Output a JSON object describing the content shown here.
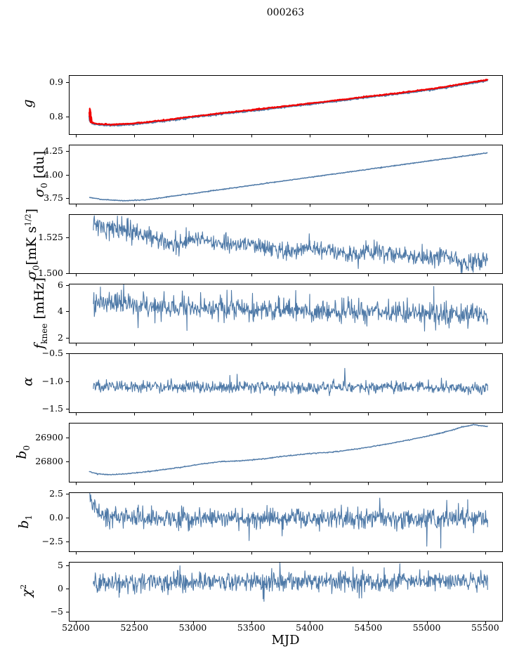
{
  "title": "000263",
  "xlabel": "MJD",
  "colors": {
    "data_blue": "#4e79a7",
    "fit_red": "#f20000",
    "spine": "#000000",
    "text": "#000000"
  },
  "chart_data": {
    "type": "line",
    "title": "000263",
    "xlabel": "MJD",
    "grid": false,
    "legend": "none",
    "xlim": [
      51940,
      55645
    ],
    "x_range": [
      52115,
      55520
    ],
    "xticks": [
      {
        "v": 52000,
        "label": "52000"
      },
      {
        "v": 52500,
        "label": "52500"
      },
      {
        "v": 53000,
        "label": "53000"
      },
      {
        "v": 53500,
        "label": "53500"
      },
      {
        "v": 54000,
        "label": "54000"
      },
      {
        "v": 54500,
        "label": "54500"
      },
      {
        "v": 55000,
        "label": "55000"
      },
      {
        "v": 55500,
        "label": "55500"
      }
    ],
    "subplots": [
      {
        "name": "g",
        "ylabel_segments": [
          {
            "t": "g",
            "s": "i"
          }
        ],
        "ylim": [
          0.748,
          0.92
        ],
        "yticks": [
          {
            "v": 0.8,
            "label": "0.8"
          },
          {
            "v": 0.9,
            "label": "0.9"
          }
        ],
        "series": [
          {
            "name": "gain-data",
            "color": "data_blue",
            "width": 2.2,
            "noise_std": 0.0012,
            "keypoints": [
              [
                52115,
                0.8
              ],
              [
                52118,
                0.7875
              ],
              [
                52122,
                0.7915
              ],
              [
                52126,
                0.7825
              ],
              [
                52132,
                0.786
              ],
              [
                52140,
                0.7795
              ],
              [
                52155,
                0.7775
              ],
              [
                52200,
                0.7755
              ],
              [
                52300,
                0.774
              ],
              [
                52420,
                0.7755
              ],
              [
                52560,
                0.7795
              ],
              [
                52750,
                0.7865
              ],
              [
                53000,
                0.7975
              ],
              [
                53250,
                0.8075
              ],
              [
                53500,
                0.8165
              ],
              [
                53750,
                0.826
              ],
              [
                54000,
                0.8355
              ],
              [
                54250,
                0.8455
              ],
              [
                54500,
                0.856
              ],
              [
                54750,
                0.8655
              ],
              [
                55000,
                0.8765
              ],
              [
                55150,
                0.8835
              ],
              [
                55300,
                0.8925
              ],
              [
                55420,
                0.899
              ],
              [
                55520,
                0.9045
              ]
            ]
          },
          {
            "name": "gain-fit",
            "color": "fit_red",
            "width": 2.2,
            "noise_std": 0.0007,
            "keypoints": [
              [
                52115,
                0.8115
              ],
              [
                52117,
                0.799
              ],
              [
                52119,
                0.8235
              ],
              [
                52121,
                0.7875
              ],
              [
                52123,
                0.8185
              ],
              [
                52125,
                0.7835
              ],
              [
                52127,
                0.8125
              ],
              [
                52129,
                0.7815
              ],
              [
                52132,
                0.7975
              ],
              [
                52136,
                0.7855
              ],
              [
                52142,
                0.7815
              ],
              [
                52155,
                0.7795
              ],
              [
                52200,
                0.7775
              ],
              [
                52300,
                0.776
              ],
              [
                52420,
                0.7775
              ],
              [
                52560,
                0.7815
              ],
              [
                52750,
                0.7885
              ],
              [
                53000,
                0.7995
              ],
              [
                53250,
                0.8095
              ],
              [
                53500,
                0.8185
              ],
              [
                53750,
                0.828
              ],
              [
                54000,
                0.8375
              ],
              [
                54250,
                0.8475
              ],
              [
                54500,
                0.858
              ],
              [
                54750,
                0.8675
              ],
              [
                55000,
                0.8785
              ],
              [
                55150,
                0.8855
              ],
              [
                55300,
                0.8945
              ],
              [
                55420,
                0.901
              ],
              [
                55520,
                0.9065
              ]
            ]
          }
        ]
      },
      {
        "name": "sigma0-du",
        "ylabel_segments": [
          {
            "t": "σ",
            "s": "i"
          },
          {
            "t": "0",
            "s": "sub"
          },
          {
            "t": " [du]",
            "s": "n"
          }
        ],
        "ylim": [
          3.69,
          4.32
        ],
        "yticks": [
          {
            "v": 3.75,
            "label": "3.75"
          },
          {
            "v": 4.0,
            "label": "4.00"
          },
          {
            "v": 4.25,
            "label": "4.25"
          }
        ],
        "series": [
          {
            "name": "sigma0-du-line",
            "color": "data_blue",
            "width": 1.5,
            "noise_std": 0.0022,
            "keypoints": [
              [
                52115,
                3.757
              ],
              [
                52230,
                3.734
              ],
              [
                52420,
                3.7215
              ],
              [
                52600,
                3.731
              ],
              [
                52900,
                3.7825
              ],
              [
                53200,
                3.834
              ],
              [
                53500,
                3.8855
              ],
              [
                53800,
                3.937
              ],
              [
                54100,
                3.9885
              ],
              [
                54400,
                4.04
              ],
              [
                54700,
                4.0915
              ],
              [
                55000,
                4.143
              ],
              [
                55300,
                4.1945
              ],
              [
                55520,
                4.232
              ]
            ]
          }
        ]
      },
      {
        "name": "sigma0-mk",
        "ylabel_segments": [
          {
            "t": "σ",
            "s": "i"
          },
          {
            "t": "0",
            "s": "sub"
          },
          {
            "t": "[mK s",
            "s": "n"
          },
          {
            "t": "1/2",
            "s": "sup"
          },
          {
            "t": "]",
            "s": "n"
          }
        ],
        "ylim": [
          1.5,
          1.5415
        ],
        "yticks": [
          {
            "v": 1.5,
            "label": "1.500"
          },
          {
            "v": 1.525,
            "label": "1.525"
          }
        ],
        "series": [
          {
            "name": "sigma0-mk-line",
            "color": "data_blue",
            "width": 1.1,
            "noise_std": 0.0032,
            "tail": 0.02,
            "keypoints": [
              [
                52150,
                1.5345
              ],
              [
                52300,
                1.5315
              ],
              [
                52450,
                1.53
              ],
              [
                52600,
                1.5265
              ],
              [
                52800,
                1.52
              ],
              [
                53000,
                1.5235
              ],
              [
                53200,
                1.5215
              ],
              [
                53400,
                1.5205
              ],
              [
                53600,
                1.5185
              ],
              [
                53800,
                1.5155
              ],
              [
                54000,
                1.518
              ],
              [
                54200,
                1.5145
              ],
              [
                54400,
                1.5135
              ],
              [
                54600,
                1.516
              ],
              [
                54800,
                1.5125
              ],
              [
                55000,
                1.5105
              ],
              [
                55150,
                1.5125
              ],
              [
                55300,
                1.5065
              ],
              [
                55420,
                1.5075
              ],
              [
                55520,
                1.5095
              ]
            ]
          }
        ]
      },
      {
        "name": "fknee",
        "ylabel_segments": [
          {
            "t": "f",
            "s": "i"
          },
          {
            "t": "knee",
            "s": "sub"
          },
          {
            "t": " [mHz]",
            "s": "n"
          }
        ],
        "ylim": [
          1.62,
          6.1
        ],
        "yticks": [
          {
            "v": 2,
            "label": "2"
          },
          {
            "v": 4,
            "label": "4"
          },
          {
            "v": 6,
            "label": "6"
          }
        ],
        "series": [
          {
            "name": "fknee-line",
            "color": "data_blue",
            "width": 1.1,
            "noise_std": 0.42,
            "tail": 0.03,
            "keypoints": [
              [
                52150,
                4.65
              ],
              [
                52400,
                4.52
              ],
              [
                52700,
                4.42
              ],
              [
                53000,
                4.3
              ],
              [
                53300,
                4.22
              ],
              [
                53600,
                4.12
              ],
              [
                54000,
                4.02
              ],
              [
                54400,
                3.95
              ],
              [
                54800,
                3.88
              ],
              [
                55200,
                3.78
              ],
              [
                55520,
                3.62
              ]
            ],
            "spikes": [
              [
                52210,
                5.85
              ],
              [
                53330,
                5.6
              ],
              [
                52950,
                2.55
              ],
              [
                55060,
                5.9
              ]
            ]
          }
        ]
      },
      {
        "name": "alpha",
        "ylabel_segments": [
          {
            "t": "α",
            "s": "i"
          }
        ],
        "ylim": [
          -1.557,
          -0.498
        ],
        "yticks": [
          {
            "v": -1.5,
            "label": "−1.5"
          },
          {
            "v": -1.0,
            "label": "−1.0"
          },
          {
            "v": -0.5,
            "label": "−0.5"
          }
        ],
        "series": [
          {
            "name": "alpha-line",
            "color": "data_blue",
            "width": 1.1,
            "noise_std": 0.052,
            "tail": 0.02,
            "keypoints": [
              [
                52150,
                -1.085
              ],
              [
                53500,
                -1.105
              ],
              [
                55520,
                -1.12
              ]
            ]
          }
        ]
      },
      {
        "name": "b0",
        "ylabel_segments": [
          {
            "t": "b",
            "s": "i"
          },
          {
            "t": "0",
            "s": "sub"
          }
        ],
        "ylim": [
          26713,
          26963
        ],
        "yticks": [
          {
            "v": 26800,
            "label": "26800"
          },
          {
            "v": 26900,
            "label": "26900"
          }
        ],
        "series": [
          {
            "name": "b0-line",
            "color": "data_blue",
            "width": 1.4,
            "noise_std": 1.0,
            "keypoints": [
              [
                52115,
                26757
              ],
              [
                52180,
                26747
              ],
              [
                52300,
                26743
              ],
              [
                52450,
                26748
              ],
              [
                52650,
                26758
              ],
              [
                52900,
                26775
              ],
              [
                53100,
                26790
              ],
              [
                53250,
                26799
              ],
              [
                53400,
                26802
              ],
              [
                53600,
                26810
              ],
              [
                53800,
                26822
              ],
              [
                54000,
                26833
              ],
              [
                54200,
                26839
              ],
              [
                54400,
                26852
              ],
              [
                54600,
                26868
              ],
              [
                54800,
                26886
              ],
              [
                55000,
                26906
              ],
              [
                55150,
                26923
              ],
              [
                55300,
                26945
              ],
              [
                55400,
                26955
              ],
              [
                55450,
                26952
              ],
              [
                55520,
                26947
              ]
            ]
          }
        ]
      },
      {
        "name": "b1",
        "ylabel_segments": [
          {
            "t": "b",
            "s": "i"
          },
          {
            "t": "1",
            "s": "sub"
          }
        ],
        "ylim": [
          -3.55,
          2.68
        ],
        "yticks": [
          {
            "v": -2.5,
            "label": "−2.5"
          },
          {
            "v": 0.0,
            "label": "0.0"
          },
          {
            "v": 2.5,
            "label": "2.5"
          }
        ],
        "series": [
          {
            "name": "b1-line",
            "color": "data_blue",
            "width": 1.1,
            "noise_std": 0.52,
            "tail": 0.02,
            "keypoints": [
              [
                52115,
                2.55
              ],
              [
                52135,
                1.8
              ],
              [
                52160,
                1.1
              ],
              [
                52200,
                0.55
              ],
              [
                52260,
                0.2
              ],
              [
                52350,
                0.02
              ],
              [
                52500,
                -0.07
              ],
              [
                55520,
                -0.08
              ]
            ],
            "spikes": [
              [
                55120,
                -3.2
              ],
              [
                55350,
                1.9
              ],
              [
                55400,
                -1.6
              ]
            ]
          }
        ]
      },
      {
        "name": "chi2",
        "ylabel_segments": [
          {
            "t": "χ",
            "s": "i"
          },
          {
            "t": "2",
            "s": "sup"
          }
        ],
        "ylim": [
          -7.0,
          5.8
        ],
        "yticks": [
          {
            "v": -5,
            "label": "−5"
          },
          {
            "v": 0,
            "label": "0"
          },
          {
            "v": 5,
            "label": "5"
          }
        ],
        "series": [
          {
            "name": "chi2-line",
            "color": "data_blue",
            "width": 1.1,
            "noise_std": 1.05,
            "tail": 0.02,
            "keypoints": [
              [
                52150,
                1.1
              ],
              [
                53000,
                1.45
              ],
              [
                54000,
                1.5
              ],
              [
                55000,
                1.5
              ],
              [
                55520,
                1.6
              ]
            ],
            "spikes": [
              [
                54770,
                5.4
              ],
              [
                52370,
                -1.9
              ]
            ]
          }
        ]
      }
    ]
  }
}
